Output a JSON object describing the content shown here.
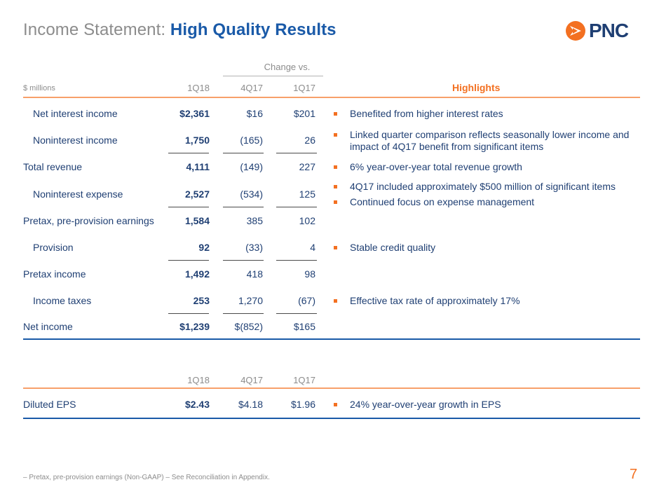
{
  "title": {
    "prefix": "Income Statement:",
    "highlight": "High Quality Results"
  },
  "logo": {
    "text": "PNC",
    "icon": "pnc-logo-icon"
  },
  "header": {
    "change_vs": "Change vs.",
    "units": "$ millions",
    "col1": "1Q18",
    "col2": "4Q17",
    "col3": "1Q17",
    "highlights": "Highlights"
  },
  "rows": [
    {
      "label": "Net interest income",
      "c1": "$2,361",
      "c2": "$16",
      "c3": "$201"
    },
    {
      "label": "Noninterest income",
      "c1": "1,750",
      "c2": "(165)",
      "c3": "26"
    },
    {
      "label": "Total revenue",
      "c1": "4,111",
      "c2": "(149)",
      "c3": "227"
    },
    {
      "label": "Noninterest expense",
      "c1": "2,527",
      "c2": "(534)",
      "c3": "125"
    },
    {
      "label": "Pretax, pre-provision earnings",
      "c1": "1,584",
      "c2": "385",
      "c3": "102"
    },
    {
      "label": "Provision",
      "c1": "92",
      "c2": "(33)",
      "c3": "4"
    },
    {
      "label": "Pretax income",
      "c1": "1,492",
      "c2": "418",
      "c3": "98"
    },
    {
      "label": "Income taxes",
      "c1": "253",
      "c2": "1,270",
      "c3": "(67)"
    },
    {
      "label": "Net income",
      "c1": "$1,239",
      "c2": "$(852)",
      "c3": "$165"
    }
  ],
  "highlights": [
    "Benefited from higher interest rates",
    "Linked quarter comparison reflects seasonally lower income and impact of 4Q17 benefit from significant items",
    "6% year-over-year total revenue growth",
    "4Q17 included approximately $500 million of significant items",
    "Continued focus on expense management",
    "Stable credit quality",
    "Effective tax rate of approximately 17%"
  ],
  "eps": {
    "col1": "1Q18",
    "col2": "4Q17",
    "col3": "1Q17",
    "label": "Diluted EPS",
    "c1": "$2.43",
    "c2": "$4.18",
    "c3": "$1.96",
    "highlight": "24% year-over-year growth in EPS"
  },
  "footnote": "– Pretax, pre-provision earnings (Non-GAAP) – See Reconciliation in Appendix.",
  "page_number": "7",
  "colors": {
    "accent": "#f37021",
    "navy": "#1f3f73",
    "blue": "#1a5aa8",
    "gray": "#8c8c8c"
  }
}
